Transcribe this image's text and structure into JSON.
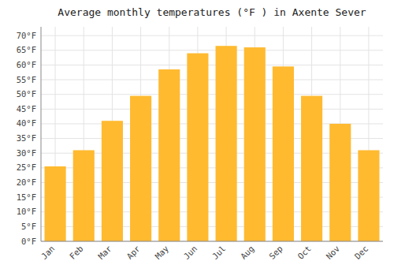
{
  "chart_data": {
    "type": "bar",
    "title": "Average monthly temperatures (°F ) in Axente Sever",
    "categories": [
      "Jan",
      "Feb",
      "Mar",
      "Apr",
      "May",
      "Jun",
      "Jul",
      "Aug",
      "Sep",
      "Oct",
      "Nov",
      "Dec"
    ],
    "values": [
      25.5,
      31.0,
      41.0,
      49.5,
      58.5,
      64.0,
      66.5,
      66.0,
      59.5,
      49.5,
      40.0,
      31.0
    ],
    "color": "#FFBA30",
    "ylim": [
      0,
      73
    ],
    "yticks": [
      {
        "value": 0,
        "label": "0°F"
      },
      {
        "value": 5,
        "label": "5°F"
      },
      {
        "value": 10,
        "label": "10°F"
      },
      {
        "value": 15,
        "label": "15°F"
      },
      {
        "value": 20,
        "label": "20°F"
      },
      {
        "value": 25,
        "label": "25°F"
      },
      {
        "value": 30,
        "label": "30°F"
      },
      {
        "value": 35,
        "label": "35°F"
      },
      {
        "value": 40,
        "label": "40°F"
      },
      {
        "value": 45,
        "label": "45°F"
      },
      {
        "value": 50,
        "label": "50°F"
      },
      {
        "value": 55,
        "label": "55°F"
      },
      {
        "value": 60,
        "label": "60°F"
      },
      {
        "value": 65,
        "label": "65°F"
      },
      {
        "value": 70,
        "label": "70°F"
      }
    ],
    "grid": true
  }
}
